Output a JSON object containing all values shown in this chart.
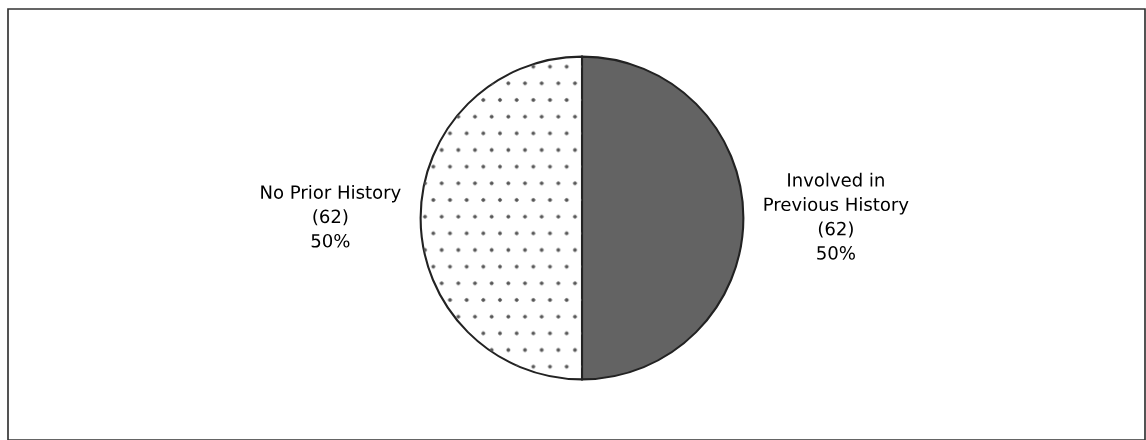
{
  "chart_data": {
    "type": "pie",
    "categories": [
      "Involved in\nPrevious History",
      "No Prior History"
    ],
    "values": [
      62,
      62
    ],
    "value_labels": [
      "(62)\n50%",
      "(62)\n50%"
    ],
    "colors": [
      "#636363",
      "#ffffff"
    ]
  }
}
